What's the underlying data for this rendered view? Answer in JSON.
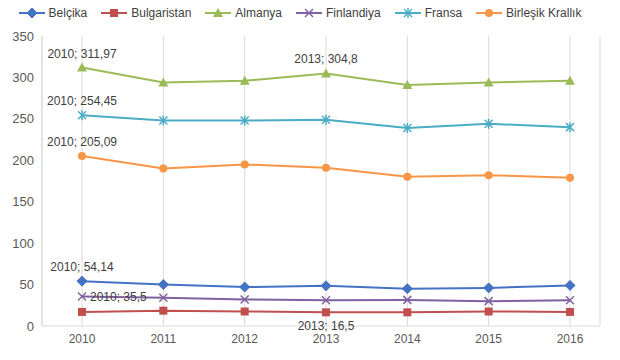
{
  "chart_data": {
    "type": "line",
    "categories": [
      "2010",
      "2011",
      "2012",
      "2013",
      "2014",
      "2015",
      "2016"
    ],
    "series": [
      {
        "name": "Belçika",
        "color": "#4472c4",
        "marker": "diamond",
        "values": [
          54.14,
          50,
          47,
          48.5,
          45,
          46,
          49
        ],
        "value_labels": [
          "2010; 54,14",
          null,
          null,
          null,
          null,
          null,
          null
        ]
      },
      {
        "name": "Bulgaristan",
        "color": "#c0504d",
        "marker": "square",
        "values": [
          17,
          18.5,
          17.5,
          16.5,
          16.5,
          17.5,
          17
        ],
        "value_labels": [
          null,
          null,
          null,
          "2013; 16,5",
          null,
          null,
          null
        ]
      },
      {
        "name": "Almanya",
        "color": "#9bbb59",
        "marker": "triangle",
        "values": [
          311.97,
          294,
          296,
          304.8,
          291,
          294,
          296
        ],
        "value_labels": [
          "2010; 311,97",
          null,
          null,
          "2013; 304,8",
          null,
          null,
          null
        ]
      },
      {
        "name": "Finlandiya",
        "color": "#7f60a0",
        "marker": "x",
        "values": [
          35.5,
          34,
          32,
          31,
          31.5,
          30,
          31
        ],
        "value_labels": [
          "2010; 35,5",
          null,
          null,
          null,
          null,
          null,
          null
        ]
      },
      {
        "name": "Fransa",
        "color": "#4bacc6",
        "marker": "asterisk",
        "values": [
          254.45,
          248,
          248,
          249,
          239,
          244,
          240
        ],
        "value_labels": [
          "2010; 254,45",
          null,
          null,
          null,
          null,
          null,
          null
        ]
      },
      {
        "name": "Birleşik Krallık",
        "color": "#f79646",
        "marker": "circle",
        "values": [
          205.09,
          190,
          195,
          191,
          180,
          182,
          179
        ],
        "value_labels": [
          "2010; 205,09",
          null,
          null,
          null,
          null,
          null,
          null
        ]
      }
    ],
    "ylim": [
      0,
      350
    ],
    "yticks": [
      0,
      50,
      100,
      150,
      200,
      250,
      300,
      350
    ],
    "grid": true,
    "legend": "top"
  }
}
